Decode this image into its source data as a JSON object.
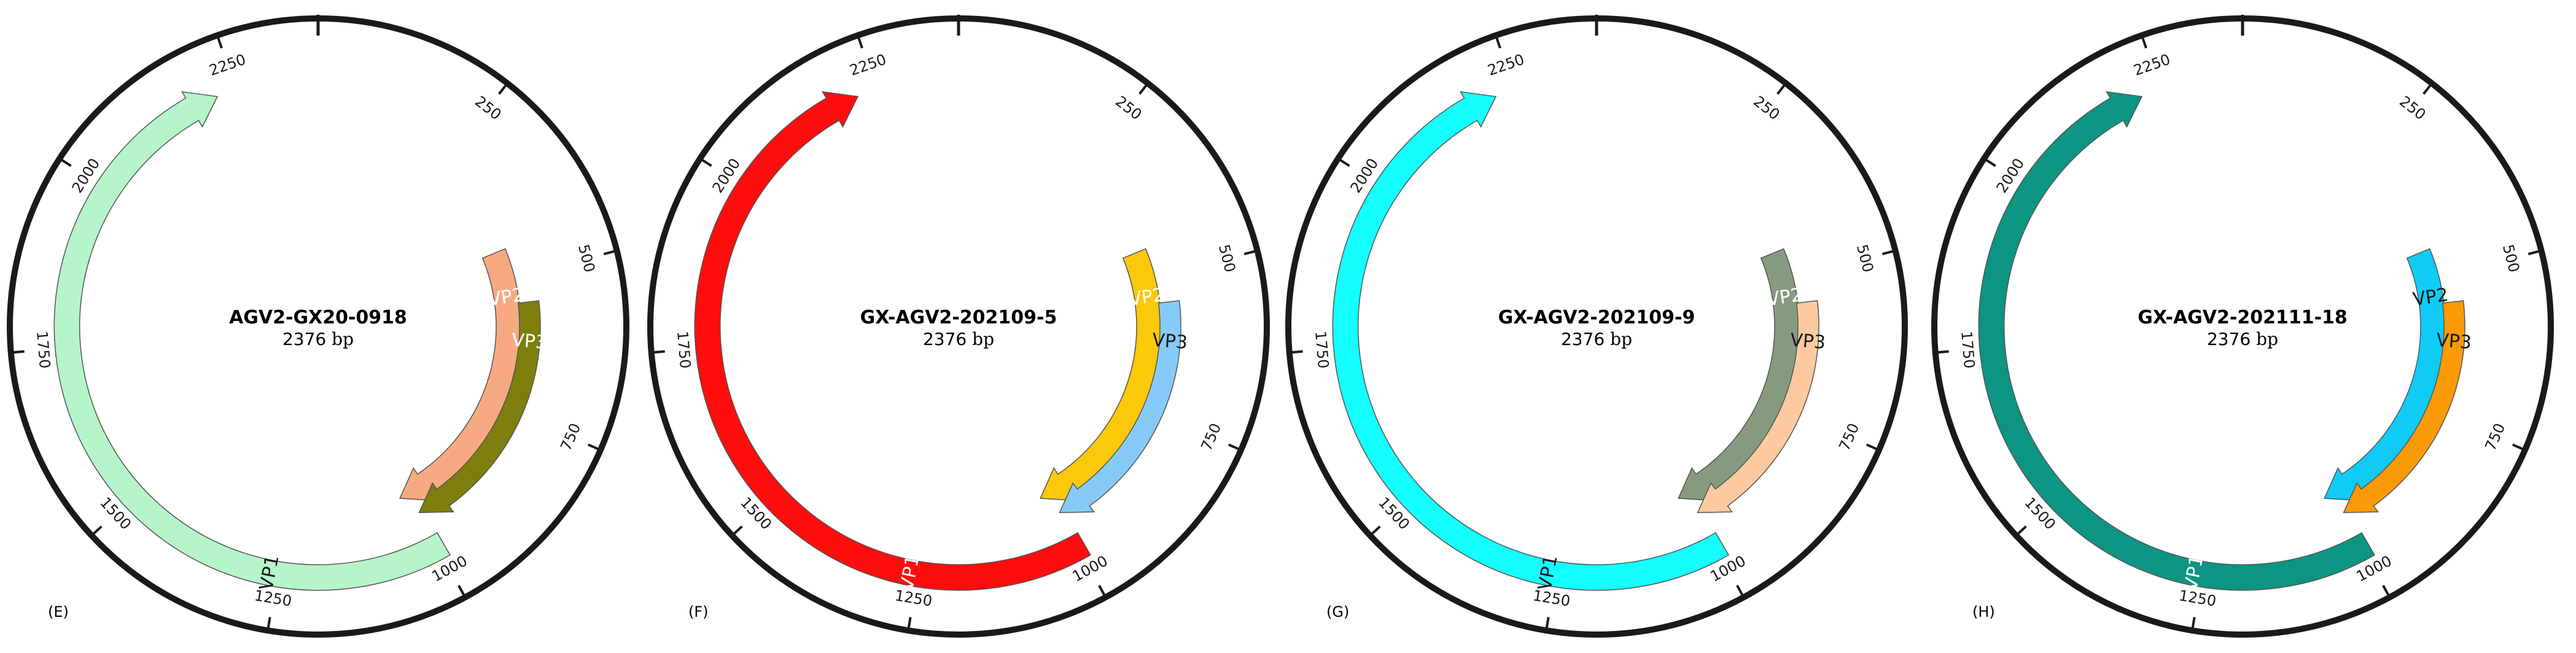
{
  "maps": [
    {
      "panel": "(E)",
      "name": "AGV2-GX20-0918",
      "length": "2376",
      "unit": "bp",
      "ticks": [
        "250",
        "500",
        "750",
        "1000",
        "1250",
        "1500",
        "1750",
        "2000",
        "2250"
      ],
      "features": [
        {
          "label": "VP1",
          "start": 990,
          "end": 2220,
          "direction": "forward",
          "fill": "#b5f5c9",
          "text_color": "#1a1a1a"
        },
        {
          "label": "VP2",
          "start": 445,
          "end": 1020,
          "direction": "forward",
          "fill": "#f7aa82",
          "text_color": "#ffffff"
        },
        {
          "label": "VP3",
          "start": 550,
          "end": 1000,
          "direction": "forward",
          "fill": "#7d7e0c",
          "text_color": "#ffffff"
        }
      ]
    },
    {
      "panel": "(F)",
      "name": "GX-AGV2-202109-5",
      "length": "2376",
      "unit": "bp",
      "ticks": [
        "250",
        "500",
        "750",
        "1000",
        "1250",
        "1500",
        "1750",
        "2000",
        "2250"
      ],
      "features": [
        {
          "label": "VP1",
          "start": 990,
          "end": 2220,
          "direction": "forward",
          "fill": "#ff0d0d",
          "text_color": "#ffffff"
        },
        {
          "label": "VP2",
          "start": 445,
          "end": 1020,
          "direction": "forward",
          "fill": "#fcc80a",
          "text_color": "#ffffff"
        },
        {
          "label": "VP3",
          "start": 550,
          "end": 1000,
          "direction": "forward",
          "fill": "#86cbf7",
          "text_color": "#1a1a1a"
        }
      ]
    },
    {
      "panel": "(G)",
      "name": "GX-AGV2-202109-9",
      "length": "2376",
      "unit": "bp",
      "ticks": [
        "250",
        "500",
        "750",
        "1000",
        "1250",
        "1500",
        "1750",
        "2000",
        "2250"
      ],
      "features": [
        {
          "label": "VP1",
          "start": 990,
          "end": 2220,
          "direction": "forward",
          "fill": "#14ffff",
          "text_color": "#1a1a1a"
        },
        {
          "label": "VP2",
          "start": 445,
          "end": 1020,
          "direction": "forward",
          "fill": "#869a80",
          "text_color": "#ffffff"
        },
        {
          "label": "VP3",
          "start": 550,
          "end": 1000,
          "direction": "forward",
          "fill": "#fcca9e",
          "text_color": "#1a1a1a"
        }
      ]
    },
    {
      "panel": "(H)",
      "name": "GX-AGV2-202111-18",
      "length": "2376",
      "unit": "bp",
      "ticks": [
        "250",
        "500",
        "750",
        "1000",
        "1250",
        "1500",
        "1750",
        "2000",
        "2250"
      ],
      "features": [
        {
          "label": "VP1",
          "start": 990,
          "end": 2220,
          "direction": "forward",
          "fill": "#0b9582",
          "text_color": "#ffffff"
        },
        {
          "label": "VP2",
          "start": 445,
          "end": 1020,
          "direction": "forward",
          "fill": "#0fcbf5",
          "text_color": "#1a1a1a"
        },
        {
          "label": "VP3",
          "start": 550,
          "end": 1000,
          "direction": "forward",
          "fill": "#fb9a07",
          "text_color": "#1a1a1a"
        }
      ]
    }
  ]
}
